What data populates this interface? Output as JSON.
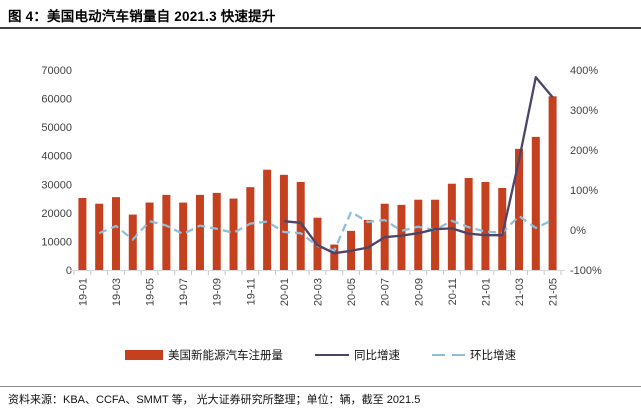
{
  "header": {
    "title": "图 4：美国电动汽车销量自 2021.3 快速提升"
  },
  "legend": [
    {
      "label": "美国新能源汽车注册量",
      "color": "#C5401F",
      "swatch": "bar"
    },
    {
      "label": "同比增速",
      "color": "#4E4468",
      "swatch": "line"
    },
    {
      "label": "环比增速",
      "color": "#8FBEDB",
      "swatch": "dashed-line"
    }
  ],
  "footer": {
    "source_note": "资料来源：KBA、CCFA、SMMT 等， 光大证券研究所整理；单位：辆，截至 2021.5"
  },
  "chart_data": {
    "type": "bar",
    "subtype": "combo-bar-line-dual-axis",
    "title": "美国电动汽车销量自 2021.3 快速提升",
    "grid": false,
    "legend_position": "bottom",
    "categories": [
      "19-01",
      "19-02",
      "19-03",
      "19-04",
      "19-05",
      "19-06",
      "19-07",
      "19-08",
      "19-09",
      "19-10",
      "19-11",
      "19-12",
      "20-01",
      "20-02",
      "20-03",
      "20-04",
      "20-05",
      "20-06",
      "20-07",
      "20-08",
      "20-09",
      "20-10",
      "20-11",
      "20-12",
      "21-01",
      "21-02",
      "21-03",
      "21-04",
      "21-05"
    ],
    "x_tick_labels_shown": [
      "19-01",
      "19-03",
      "19-05",
      "19-07",
      "19-09",
      "19-11",
      "20-01",
      "20-03",
      "20-05",
      "20-07",
      "20-09",
      "20-11",
      "21-01",
      "21-03",
      "21-05"
    ],
    "left_axis": {
      "min": 0,
      "max": 70000,
      "tick_step": 10000,
      "tick_labels": [
        "0",
        "10000",
        "20000",
        "30000",
        "40000",
        "50000",
        "60000",
        "70000"
      ]
    },
    "right_axis": {
      "min": -100,
      "max": 400,
      "tick_step": 100,
      "tick_labels": [
        "-100%",
        "0%",
        "100%",
        "200%",
        "300%",
        "400%"
      ]
    },
    "series": [
      {
        "name": "美国新能源汽车注册量",
        "type": "bar",
        "axis": "left",
        "color": "#C5401F",
        "values": [
          25200,
          23200,
          25500,
          19400,
          23600,
          26300,
          23600,
          26300,
          27000,
          25000,
          29000,
          35100,
          33300,
          30800,
          18300,
          8900,
          13700,
          17500,
          23200,
          22800,
          24600,
          24600,
          30200,
          32200,
          30800,
          28700,
          42400,
          46600,
          60800
        ]
      },
      {
        "name": "同比增速",
        "type": "line",
        "axis": "right",
        "color": "#4E4468",
        "dashed": false,
        "values": [
          null,
          null,
          null,
          null,
          null,
          null,
          null,
          null,
          null,
          null,
          null,
          null,
          22,
          18,
          -38,
          -58,
          -52,
          -44,
          -18,
          -14,
          -8,
          2,
          4,
          -9,
          -13,
          -13,
          175,
          382,
          332
        ]
      },
      {
        "name": "环比增速",
        "type": "line",
        "axis": "right",
        "color": "#8FBEDB",
        "dashed": true,
        "values": [
          null,
          -8,
          10,
          -24,
          22,
          11,
          -10,
          11,
          3,
          -7,
          16,
          21,
          -5,
          -8,
          -40,
          -51,
          45,
          20,
          25,
          -2,
          8,
          0,
          23,
          7,
          -4,
          -7,
          35,
          5,
          25
        ]
      }
    ]
  }
}
